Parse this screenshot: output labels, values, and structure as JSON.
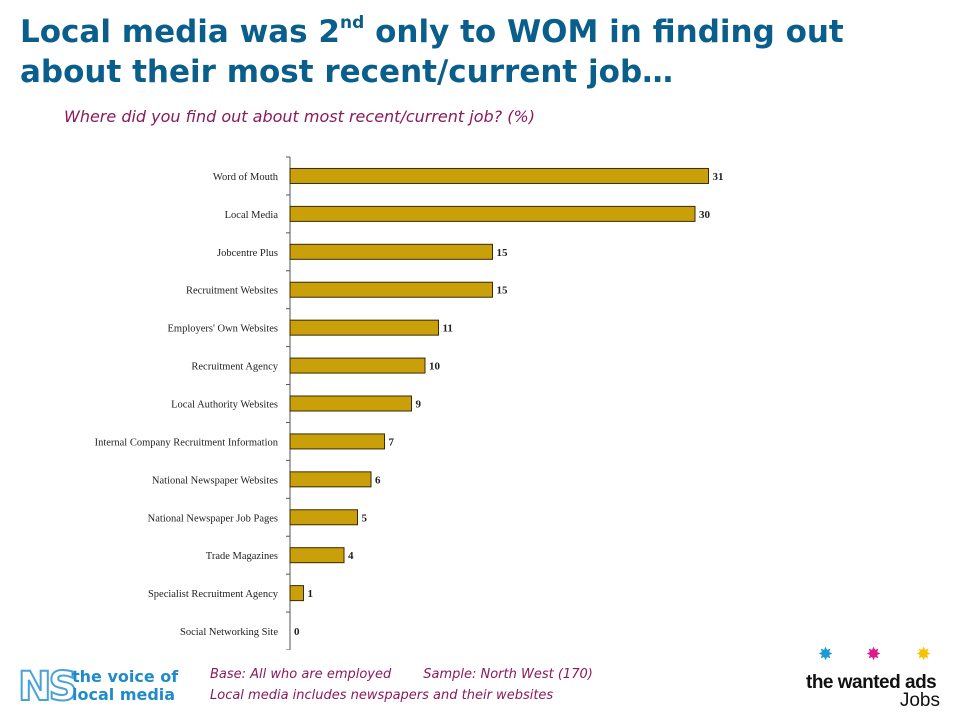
{
  "header": {
    "title_part1": "Local media was 2",
    "title_sup": "nd",
    "title_part2": " only to WOM in finding out about their most recent/current job…",
    "subtitle": "Where did you find out about most recent/current job? (%)"
  },
  "footer": {
    "base": "Base: All who are employed",
    "sample": "Sample:  North West (170)",
    "note": "Local media includes newspapers and their websites"
  },
  "logos": {
    "ns_letters": "NS",
    "ns_line1": "the voice of",
    "ns_line2": "local media",
    "brand": "the wanted ads",
    "brand_sub": "Jobs",
    "star_colors": [
      "#1a9ad6",
      "#e0188c",
      "#f5c400"
    ]
  },
  "colors": {
    "bar": "#c9a00a",
    "bar_stroke": "#3a2a00",
    "title": "#0a5e8c",
    "subtitle": "#8b1a5c"
  },
  "chart_data": {
    "type": "bar",
    "orientation": "horizontal",
    "categories": [
      "Word of Mouth",
      "Local Media",
      "Jobcentre Plus",
      "Recruitment Websites",
      "Employers' Own Websites",
      "Recruitment Agency",
      "Local Authority Websites",
      "Internal Company Recruitment Information",
      "National Newspaper Websites",
      "National Newspaper Job Pages",
      "Trade Magazines",
      "Specialist Recruitment Agency",
      "Social Networking Site"
    ],
    "values": [
      31,
      30,
      15,
      15,
      11,
      10,
      9,
      7,
      6,
      5,
      4,
      1,
      0
    ],
    "title": "",
    "xlabel": "",
    "ylabel": "",
    "xlim": [
      0,
      34
    ],
    "grid": false,
    "legend": "none",
    "data_labels": true
  }
}
